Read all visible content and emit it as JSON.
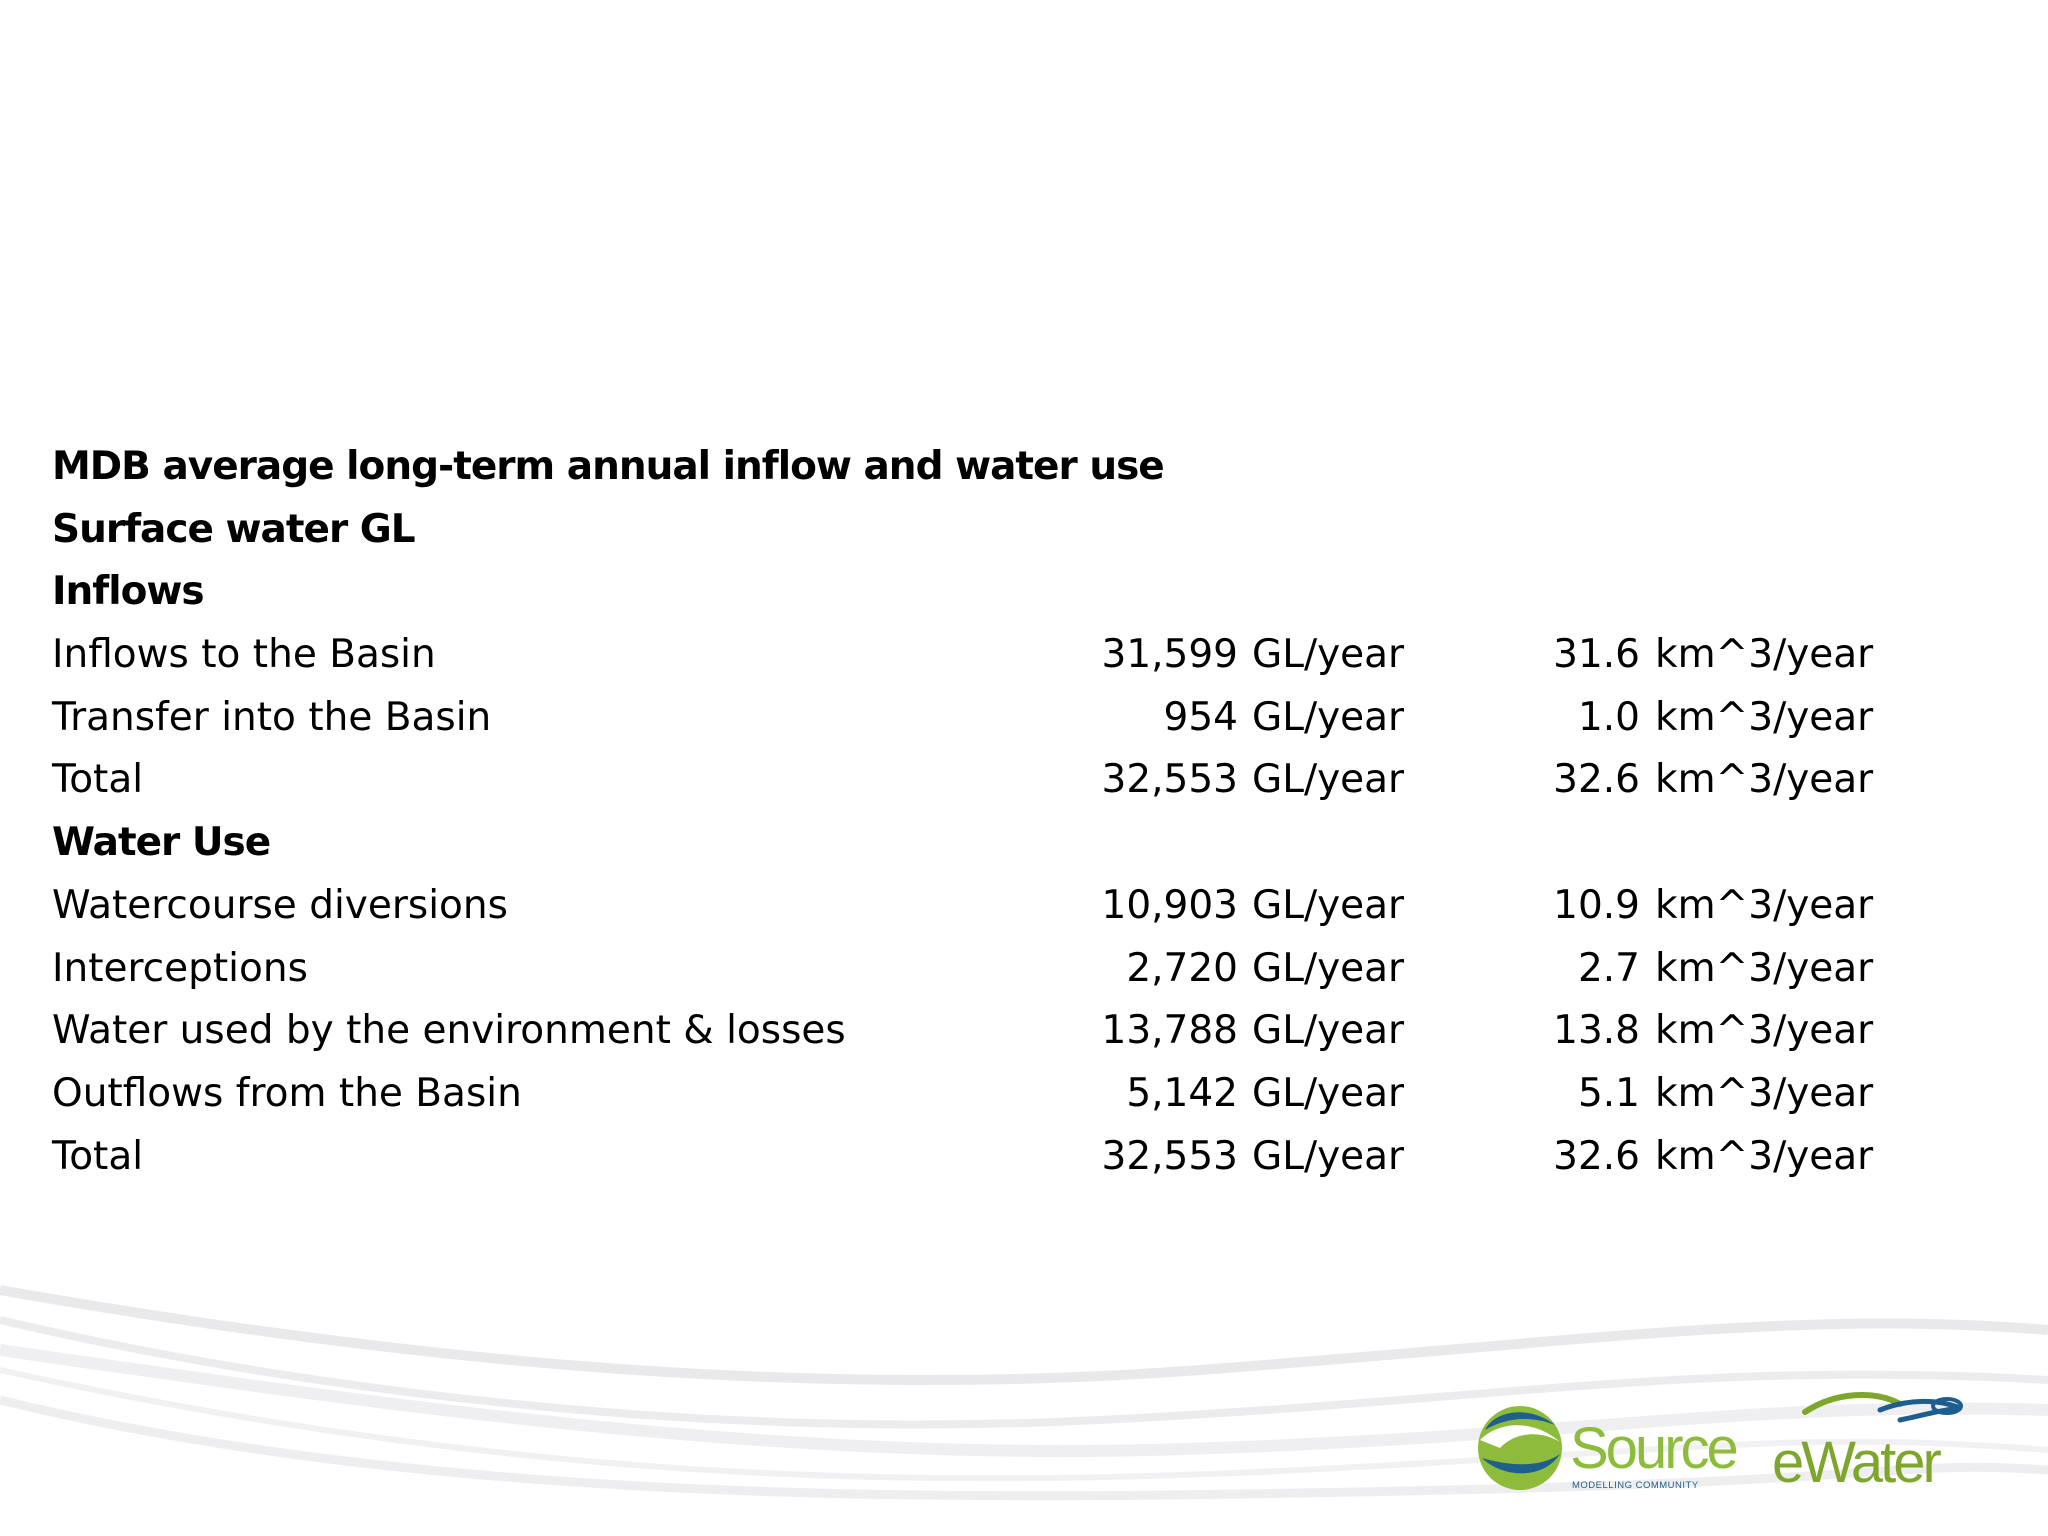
{
  "title": "MDB average long-term annual inflow and water use",
  "subtitle": "Surface water GL",
  "sections": [
    {
      "heading": "Inflows",
      "rows": [
        {
          "label": "Inflows to the Basin",
          "gl": "31,599",
          "gl_unit": "GL/year",
          "km": "31.6",
          "km_unit": "km^3/year"
        },
        {
          "label": "Transfer into the Basin",
          "gl": "954",
          "gl_unit": "GL/year",
          "km": "1.0",
          "km_unit": "km^3/year"
        },
        {
          "label": "Total",
          "gl": "32,553",
          "gl_unit": "GL/year",
          "km": "32.6",
          "km_unit": "km^3/year"
        }
      ]
    },
    {
      "heading": "Water Use",
      "rows": [
        {
          "label": "Watercourse diversions",
          "gl": "10,903",
          "gl_unit": "GL/year",
          "km": "10.9",
          "km_unit": "km^3/year"
        },
        {
          "label": "Interceptions",
          "gl": "2,720",
          "gl_unit": "GL/year",
          "km": "2.7",
          "km_unit": "km^3/year"
        },
        {
          "label": "Water used by the environment & losses",
          "gl": "13,788",
          "gl_unit": "GL/year",
          "km": "13.8",
          "km_unit": "km^3/year"
        },
        {
          "label": "Outflows from the Basin",
          "gl": "5,142",
          "gl_unit": "GL/year",
          "km": "5.1",
          "km_unit": "km^3/year"
        },
        {
          "label": "Total",
          "gl": "32,553",
          "gl_unit": "GL/year",
          "km": "32.6",
          "km_unit": "km^3/year"
        }
      ]
    }
  ],
  "logos": {
    "source_name": "Source",
    "source_tagline": "MODELLING COMMUNITY",
    "ewater_name": "eWater",
    "colors": {
      "source_green": "#8dbb3c",
      "source_blue": "#1f5f8b",
      "ewater_green": "#7ea62c",
      "ewater_blue": "#1e5d8f",
      "wave_gray": "#e4e4e6"
    }
  }
}
